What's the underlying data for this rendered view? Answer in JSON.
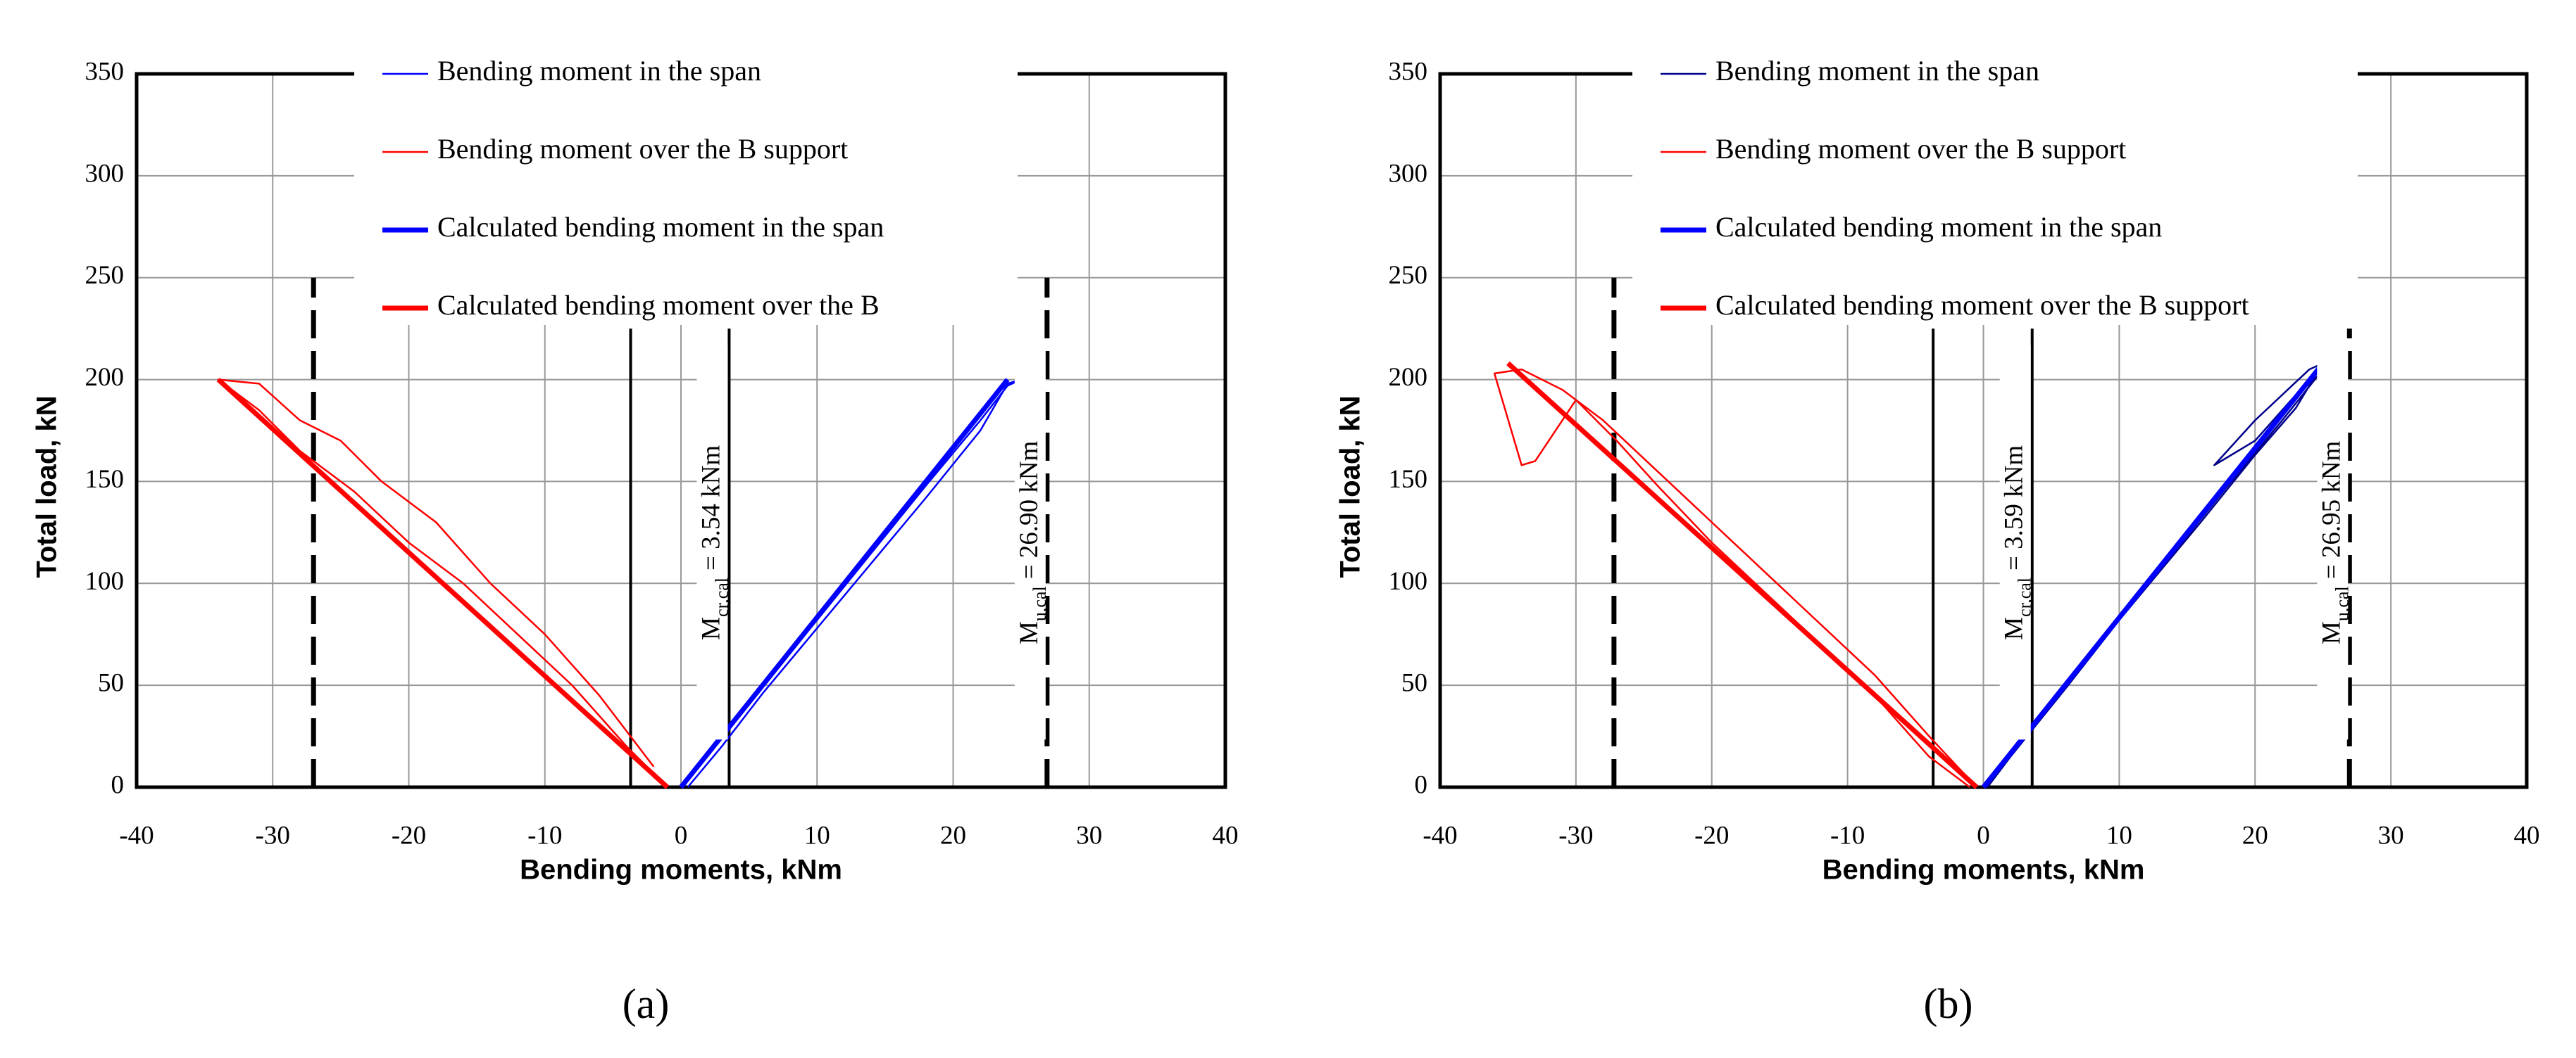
{
  "chart_data": [
    {
      "type": "line",
      "panel_label": "(a)",
      "xlabel": "Bending moments, kNm",
      "ylabel": "Total load, kN",
      "xlim": [
        -40,
        40
      ],
      "xticks": [
        -40,
        -30,
        -20,
        -10,
        0,
        10,
        20,
        30,
        40
      ],
      "ylim": [
        0,
        350
      ],
      "yticks": [
        0,
        50,
        100,
        150,
        200,
        250,
        300,
        350
      ],
      "grid": true,
      "series": [
        {
          "name": "Bending moment in the span",
          "color": "#0000ff",
          "linewidth": 2.5,
          "x": [
            0,
            3,
            6,
            10,
            14,
            18,
            22,
            24,
            25,
            24,
            22,
            18,
            14,
            10,
            6,
            3,
            0.5
          ],
          "values": [
            0,
            25,
            50,
            82,
            115,
            148,
            180,
            197,
            200,
            198,
            175,
            142,
            110,
            78,
            46,
            20,
            0
          ]
        },
        {
          "name": "Bending moment over the B support",
          "color": "#ff0000",
          "linewidth": 2.5,
          "x": [
            -1,
            -4,
            -8,
            -12,
            -16,
            -20,
            -24,
            -28,
            -31,
            -33,
            -34,
            -31,
            -28,
            -25,
            -22,
            -18,
            -14,
            -10,
            -6,
            -2
          ],
          "values": [
            0,
            20,
            50,
            75,
            100,
            120,
            145,
            165,
            185,
            195,
            200,
            198,
            180,
            170,
            150,
            130,
            100,
            75,
            45,
            10
          ]
        },
        {
          "name": "Calculated bending moment in the span",
          "color": "#0000ff",
          "linewidth": 7,
          "x": [
            0,
            24
          ],
          "values": [
            0,
            200
          ]
        },
        {
          "name": "Calculated bending moment over the B",
          "color": "#ff0000",
          "linewidth": 7,
          "x": [
            -1,
            -34
          ],
          "values": [
            0,
            200
          ]
        }
      ],
      "vlines": [
        {
          "x": -27,
          "y": [
            0,
            250
          ],
          "style": "dashed"
        },
        {
          "x": -3.7,
          "y": [
            0,
            225
          ],
          "style": "solid"
        },
        {
          "x": 3.54,
          "y": [
            0,
            225
          ],
          "style": "solid"
        },
        {
          "x": 26.9,
          "y": [
            0,
            250
          ],
          "style": "dashed"
        }
      ],
      "annotations": [
        {
          "x": 3.54,
          "symbol": "M",
          "subscript": "cr,cal",
          "text": "= 3.54 kNm"
        },
        {
          "x": 26.9,
          "symbol": "M",
          "subscript": "u,cal",
          "text": "= 26.90 kNm"
        }
      ]
    },
    {
      "type": "line",
      "panel_label": "(b)",
      "xlabel": "Bending moments, kNm",
      "ylabel": "Total load, kN",
      "xlim": [
        -40,
        40
      ],
      "xticks": [
        -40,
        -30,
        -20,
        -10,
        0,
        10,
        20,
        30,
        40
      ],
      "ylim": [
        0,
        350
      ],
      "yticks": [
        0,
        50,
        100,
        150,
        200,
        250,
        300,
        350
      ],
      "grid": true,
      "series": [
        {
          "name": "Bending moment in the span",
          "color": "#00008b",
          "linewidth": 2.5,
          "x": [
            0,
            4,
            8,
            12,
            16,
            20,
            23,
            25,
            24,
            20,
            17,
            20,
            24,
            25,
            22,
            18,
            14,
            10,
            6,
            2,
            0.3
          ],
          "values": [
            0,
            33,
            66,
            98,
            130,
            163,
            186,
            208,
            205,
            180,
            158,
            170,
            200,
            205,
            180,
            148,
            115,
            82,
            48,
            15,
            0
          ]
        },
        {
          "name": "Bending moment over the B support",
          "color": "#ff0000",
          "linewidth": 2.5,
          "x": [
            -0.5,
            -4,
            -8,
            -12,
            -16,
            -20,
            -24,
            -28,
            -31,
            -34,
            -36,
            -34,
            -33,
            -30,
            -27,
            -24,
            -20,
            -16,
            -12,
            -8,
            -4,
            -1
          ],
          "values": [
            0,
            25,
            55,
            80,
            105,
            130,
            155,
            180,
            195,
            205,
            203,
            158,
            160,
            190,
            170,
            148,
            120,
            95,
            70,
            45,
            15,
            0
          ]
        },
        {
          "name": "Calculated bending moment in the span",
          "color": "#0000ff",
          "linewidth": 7,
          "x": [
            0,
            25
          ],
          "values": [
            0,
            208
          ]
        },
        {
          "name": "Calculated bending moment over the B support",
          "color": "#ff0000",
          "linewidth": 7,
          "x": [
            -0.5,
            -35
          ],
          "values": [
            0,
            208
          ]
        }
      ],
      "vlines": [
        {
          "x": -27.2,
          "y": [
            0,
            250
          ],
          "style": "dashed"
        },
        {
          "x": -3.7,
          "y": [
            0,
            225
          ],
          "style": "solid"
        },
        {
          "x": 3.59,
          "y": [
            0,
            225
          ],
          "style": "solid"
        },
        {
          "x": 26.95,
          "y": [
            0,
            225
          ],
          "style": "dashed"
        }
      ],
      "annotations": [
        {
          "x": 3.59,
          "symbol": "M",
          "subscript": "cr,cal",
          "text": "= 3.59 kNm"
        },
        {
          "x": 26.95,
          "symbol": "M",
          "subscript": "u,cal",
          "text": "= 26.95 kNm"
        }
      ]
    }
  ]
}
